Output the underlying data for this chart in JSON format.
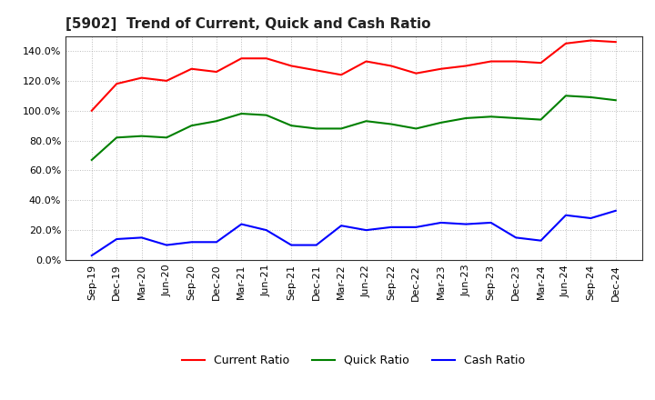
{
  "title": "[5902]  Trend of Current, Quick and Cash Ratio",
  "x_labels": [
    "Sep-19",
    "Dec-19",
    "Mar-20",
    "Jun-20",
    "Sep-20",
    "Dec-20",
    "Mar-21",
    "Jun-21",
    "Sep-21",
    "Dec-21",
    "Mar-22",
    "Jun-22",
    "Sep-22",
    "Dec-22",
    "Mar-23",
    "Jun-23",
    "Sep-23",
    "Dec-23",
    "Mar-24",
    "Jun-24",
    "Sep-24",
    "Dec-24"
  ],
  "current_ratio": [
    1.0,
    1.18,
    1.22,
    1.2,
    1.28,
    1.26,
    1.35,
    1.35,
    1.3,
    1.27,
    1.24,
    1.33,
    1.3,
    1.25,
    1.28,
    1.3,
    1.33,
    1.33,
    1.32,
    1.45,
    1.47,
    1.46
  ],
  "quick_ratio": [
    0.67,
    0.82,
    0.83,
    0.82,
    0.9,
    0.93,
    0.98,
    0.97,
    0.9,
    0.88,
    0.88,
    0.93,
    0.91,
    0.88,
    0.92,
    0.95,
    0.96,
    0.95,
    0.94,
    1.1,
    1.09,
    1.07
  ],
  "cash_ratio": [
    0.03,
    0.14,
    0.15,
    0.1,
    0.12,
    0.12,
    0.24,
    0.2,
    0.1,
    0.1,
    0.23,
    0.2,
    0.22,
    0.22,
    0.25,
    0.24,
    0.25,
    0.15,
    0.13,
    0.3,
    0.28,
    0.33
  ],
  "current_color": "#ff0000",
  "quick_color": "#008000",
  "cash_color": "#0000ff",
  "ylim": [
    0.0,
    1.5
  ],
  "yticks": [
    0.0,
    0.2,
    0.4,
    0.6,
    0.8,
    1.0,
    1.2,
    1.4
  ],
  "background_color": "#ffffff",
  "plot_bg_color": "#ffffff",
  "grid_color": "#aaaaaa",
  "title_fontsize": 11,
  "tick_fontsize": 8,
  "legend_labels": [
    "Current Ratio",
    "Quick Ratio",
    "Cash Ratio"
  ]
}
